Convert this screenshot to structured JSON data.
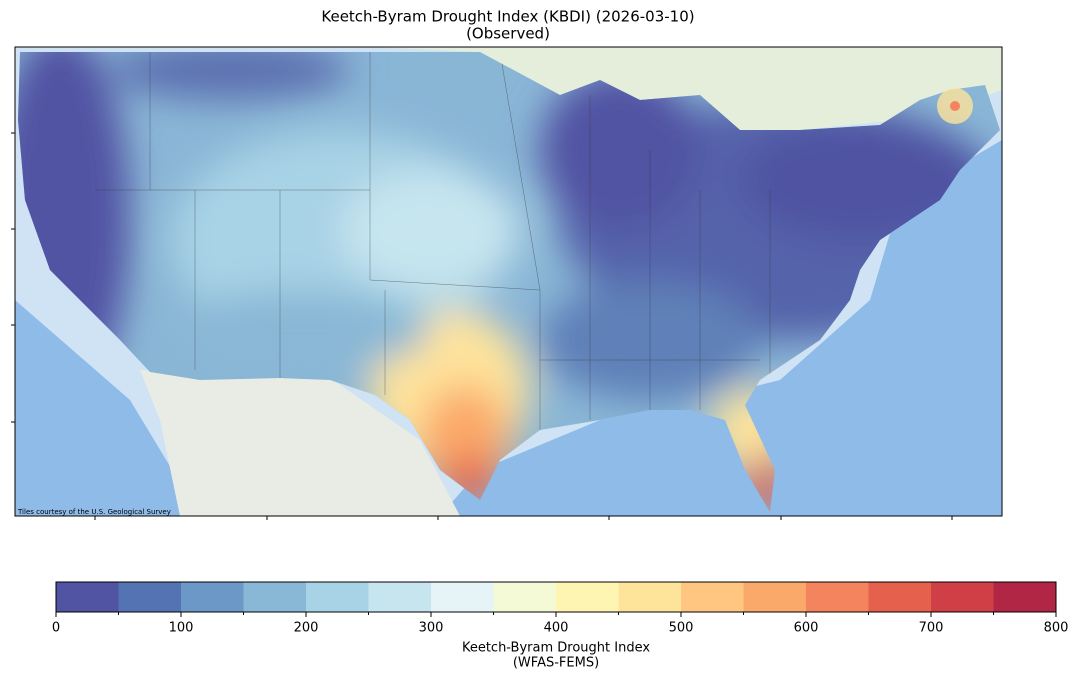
{
  "title": "Keetch-Byram Drought Index (KBDI) (2026-03-10)",
  "subtitle": "(Observed)",
  "map": {
    "attribution": "Tiles courtesy of the U.S. Geological Survey"
  },
  "colorbar": {
    "label": "Keetch-Byram Drought Index",
    "sublabel": "(WFAS-FEMS)",
    "lim": [
      0,
      800
    ],
    "ticks": [
      0,
      100,
      200,
      300,
      400,
      500,
      600,
      700,
      800
    ],
    "colors": [
      "#5153a3",
      "#5473b3",
      "#6b98c6",
      "#89b8d6",
      "#a8d2e5",
      "#c6e5ef",
      "#e6f4f8",
      "#f4fad6",
      "#fef5b3",
      "#fee39b",
      "#fec680",
      "#fba96b",
      "#f4845d",
      "#e5604d",
      "#d03f46",
      "#b22645"
    ]
  }
}
